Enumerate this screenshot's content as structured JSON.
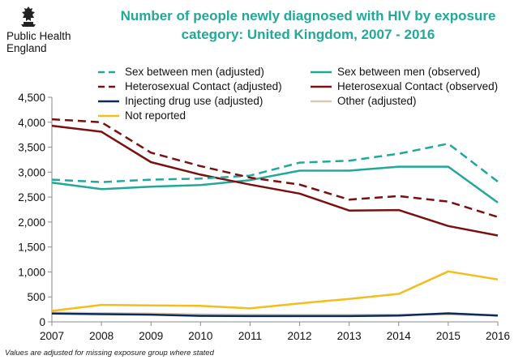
{
  "organization": {
    "line1": "Public Health",
    "line2": "England"
  },
  "footnote": "Values are adjusted for missing exposure group where stated",
  "colors": {
    "title": "#20a898",
    "msm": "#21a89a",
    "hetero": "#7a1010",
    "idu": "#0d2a5c",
    "other": "#d7c9b2",
    "not_reported": "#f3bd1c"
  },
  "chart_data": {
    "type": "line",
    "title_line1": "Number of people newly diagnosed with HIV by exposure",
    "title_line2": "category: United Kingdom, 2007 - 2016",
    "xlabel": "",
    "ylabel": "",
    "categories": [
      "2007",
      "2008",
      "2009",
      "2010",
      "2011",
      "2012",
      "2013",
      "2014",
      "2015",
      "2016"
    ],
    "ylim": [
      0,
      4500
    ],
    "yticks": [
      0,
      500,
      1000,
      1500,
      2000,
      2500,
      3000,
      3500,
      4000,
      4500
    ],
    "ytick_labels": [
      "0",
      "500",
      "1,000",
      "1,500",
      "2,000",
      "2,500",
      "3,000",
      "3,500",
      "4,000",
      "4,500"
    ],
    "grid": false,
    "legend_position": "top",
    "series": [
      {
        "name": "Sex between men (adjusted)",
        "color": "#21a89a",
        "style": "dashed",
        "values": [
          2850,
          2800,
          2850,
          2870,
          2930,
          3190,
          3230,
          3370,
          3570,
          2810
        ]
      },
      {
        "name": "Sex between men (observed)",
        "color": "#21a89a",
        "style": "solid",
        "values": [
          2790,
          2660,
          2710,
          2740,
          2840,
          3030,
          3030,
          3110,
          3110,
          2390
        ]
      },
      {
        "name": "Heterosexual Contact  (adjusted)",
        "color": "#7a1010",
        "style": "dashed",
        "values": [
          4060,
          4000,
          3390,
          3120,
          2890,
          2750,
          2450,
          2520,
          2410,
          2100
        ]
      },
      {
        "name": "Heterosexual Contact  (observed)",
        "color": "#7a1010",
        "style": "solid",
        "values": [
          3930,
          3810,
          3200,
          2950,
          2750,
          2570,
          2230,
          2240,
          1920,
          1730
        ]
      },
      {
        "name": "Injecting drug use  (adjusted)",
        "color": "#0d2a5c",
        "style": "solid",
        "values": [
          165,
          155,
          145,
          120,
          115,
          115,
          115,
          125,
          170,
          125
        ]
      },
      {
        "name": "Other (adjusted)",
        "color": "#d7c9b2",
        "style": "solid",
        "values": [
          185,
          175,
          165,
          150,
          145,
          140,
          140,
          145,
          150,
          130
        ]
      },
      {
        "name": "Not reported",
        "color": "#f3bd1c",
        "style": "solid",
        "values": [
          220,
          340,
          330,
          320,
          270,
          370,
          460,
          560,
          1010,
          850
        ]
      }
    ]
  }
}
